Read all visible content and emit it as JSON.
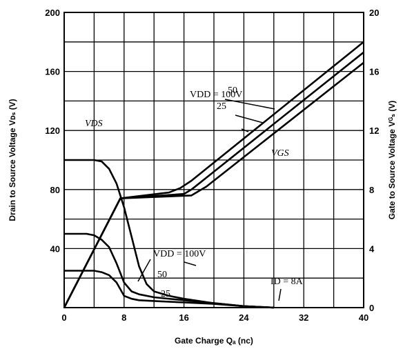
{
  "chart_data": {
    "type": "line",
    "xlabel": "Gate Charge Qₐ (nc)",
    "ylabel_left": "Drain to Source Voltage Vᴅₛ (V)",
    "ylabel_right": "Gate to Source Voltage Vᴳₛ (V)",
    "xlim": [
      0,
      40
    ],
    "ylim_left": [
      0,
      200
    ],
    "ylim_right": [
      0,
      20
    ],
    "x_ticks": [
      "0",
      "8",
      "16",
      "24",
      "32",
      "40"
    ],
    "x_tick_values": [
      0,
      8,
      16,
      24,
      32,
      40
    ],
    "y_left_ticks": [
      "40",
      "80",
      "120",
      "160",
      "200"
    ],
    "y_left_tick_values": [
      40,
      80,
      120,
      160,
      200
    ],
    "y_right_ticks": [
      "0",
      "4",
      "8",
      "12",
      "16",
      "20"
    ],
    "y_right_tick_values": [
      0,
      4,
      8,
      12,
      16,
      20
    ],
    "grid": true,
    "series": [
      {
        "name": "VDS, VDD = 100V",
        "axis": "left",
        "x": [
          0,
          4,
          5,
          6,
          7,
          8,
          9,
          10,
          11,
          12,
          14,
          16,
          20,
          24,
          28
        ],
        "y": [
          100,
          100,
          99,
          94,
          84,
          68,
          48,
          28,
          16,
          11,
          8,
          6,
          3,
          1,
          0
        ]
      },
      {
        "name": "VDS, VDD = 50V",
        "axis": "left",
        "x": [
          0,
          3,
          4,
          5,
          6,
          7,
          8,
          9,
          10,
          12,
          16,
          20,
          24,
          28
        ],
        "y": [
          50,
          50,
          49,
          46,
          41,
          30,
          17,
          11,
          9,
          7,
          5,
          3,
          1,
          0
        ]
      },
      {
        "name": "VDS, VDD = 25V",
        "axis": "left",
        "x": [
          0,
          4,
          5,
          6,
          7,
          8,
          9,
          10,
          12,
          16,
          20,
          24,
          28
        ],
        "y": [
          25,
          25,
          24,
          22,
          17,
          8,
          6,
          5,
          4.5,
          3.5,
          2.5,
          1,
          0
        ]
      },
      {
        "name": "VGS, VDD = 100V",
        "axis": "right",
        "x": [
          0,
          7.5,
          14,
          15.5,
          17,
          40
        ],
        "y": [
          0,
          7.4,
          7.8,
          8.1,
          8.6,
          18
        ]
      },
      {
        "name": "VGS, VDD = 50V",
        "axis": "right",
        "x": [
          0,
          7.5,
          16,
          17,
          18,
          40
        ],
        "y": [
          0,
          7.4,
          7.7,
          8,
          8.4,
          17.3
        ]
      },
      {
        "name": "VGS, VDD = 25V",
        "axis": "right",
        "x": [
          0,
          7.5,
          17,
          18,
          19,
          40
        ],
        "y": [
          0,
          7.4,
          7.6,
          7.9,
          8.2,
          16.6
        ]
      }
    ],
    "annotations": {
      "vds_label": "VDS",
      "vgs_label": "VGS",
      "id_label": "ID = 8A",
      "vgs_vdd_100": "VDD = 100V",
      "vgs_vdd_50": "50",
      "vgs_vdd_25": "25",
      "vds_vdd_100": "VDD = 100V",
      "vds_vdd_50": "50",
      "vds_vdd_25": "25"
    }
  }
}
